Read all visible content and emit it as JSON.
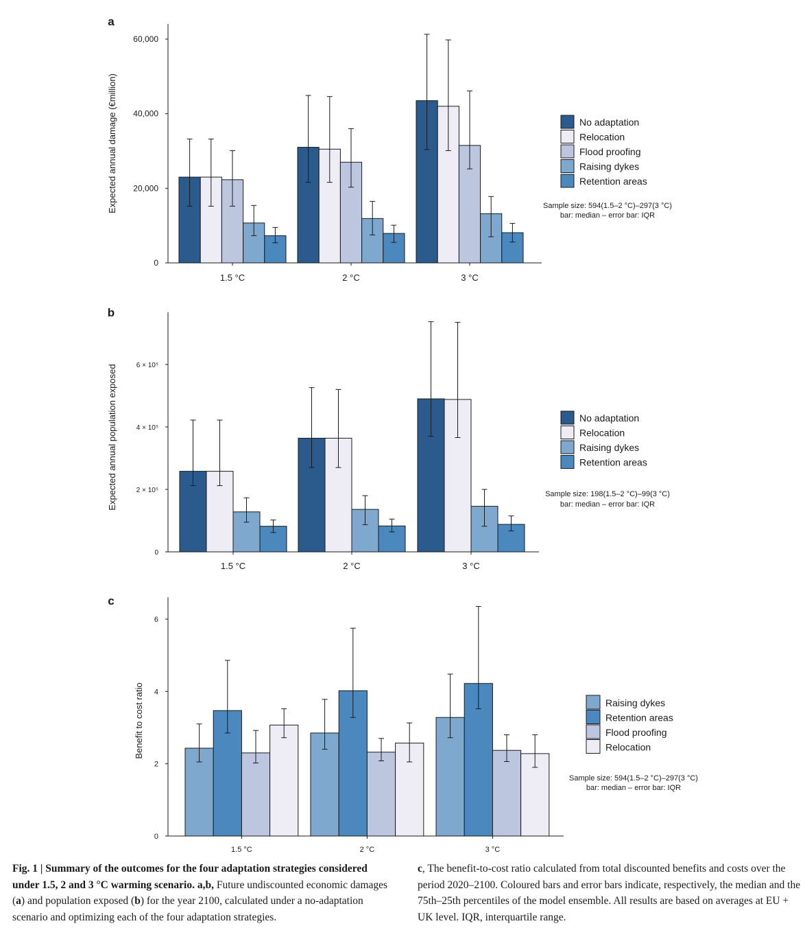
{
  "colors": {
    "No adaptation": "#2b5b8c",
    "Relocation": "#eeedf5",
    "Flood proofing": "#bcc6df",
    "Raising dykes": "#7fa8cf",
    "Retention areas": "#4a88bd"
  },
  "chart_data": [
    {
      "type": "bar",
      "panel_letter": "a",
      "ylabel": "Expected annual damage (€million)",
      "categories": [
        "1.5 °C",
        "2 °C",
        "3 °C"
      ],
      "ylim": [
        0,
        64000
      ],
      "yticks": [
        0,
        20000,
        40000,
        60000
      ],
      "ytick_labels": [
        "0",
        "20,000",
        "40,000",
        "60,000"
      ],
      "series": [
        {
          "name": "No adaptation",
          "values": [
            23000,
            31000,
            43500
          ],
          "err_low": [
            15200,
            21600,
            30400
          ],
          "err_high": [
            33200,
            44900,
            61300
          ]
        },
        {
          "name": "Relocation",
          "values": [
            23000,
            30500,
            42000
          ],
          "err_low": [
            15200,
            21600,
            30100
          ],
          "err_high": [
            33200,
            44600,
            59800
          ]
        },
        {
          "name": "Flood proofing",
          "values": [
            22300,
            27000,
            31500
          ],
          "err_low": [
            15200,
            20300,
            25200
          ],
          "err_high": [
            30100,
            36000,
            46100
          ]
        },
        {
          "name": "Raising dykes",
          "values": [
            10700,
            11900,
            13200
          ],
          "err_low": [
            7300,
            7500,
            7000
          ],
          "err_high": [
            15400,
            16500,
            17800
          ]
        },
        {
          "name": "Retention areas",
          "values": [
            7300,
            7900,
            8100
          ],
          "err_low": [
            5400,
            5500,
            5600
          ],
          "err_high": [
            9500,
            10100,
            10600
          ]
        }
      ],
      "legend": [
        "No adaptation",
        "Relocation",
        "Flood proofing",
        "Raising dykes",
        "Retention areas"
      ],
      "note_line1": "Sample size: 594(1.5–2 °C)–297(3 °C)",
      "note_line2": "bar: median – error bar: IQR"
    },
    {
      "type": "bar",
      "panel_letter": "b",
      "ylabel": "Expected annual population exposed",
      "categories": [
        "1.5 °C",
        "2 °C",
        "3 °C"
      ],
      "ylim": [
        0,
        770000
      ],
      "yticks": [
        0,
        200000,
        400000,
        600000
      ],
      "ytick_labels": [
        "0",
        "2 × 10⁵",
        "4 × 10⁵",
        "6 × 10⁵"
      ],
      "series": [
        {
          "name": "No adaptation",
          "values": [
            258000,
            364000,
            490000
          ],
          "err_low": [
            212000,
            270000,
            370000
          ],
          "err_high": [
            422000,
            526000,
            737000
          ]
        },
        {
          "name": "Relocation",
          "values": [
            258000,
            364000,
            488000
          ],
          "err_low": [
            212000,
            270000,
            366000
          ],
          "err_high": [
            422000,
            520000,
            735000
          ]
        },
        {
          "name": "Raising dykes",
          "values": [
            128000,
            136000,
            146000
          ],
          "err_low": [
            95000,
            87000,
            82000
          ],
          "err_high": [
            173000,
            180000,
            200000
          ]
        },
        {
          "name": "Retention areas",
          "values": [
            82000,
            83000,
            88000
          ],
          "err_low": [
            62000,
            64000,
            67000
          ],
          "err_high": [
            102000,
            105000,
            115000
          ]
        }
      ],
      "legend": [
        "No adaptation",
        "Relocation",
        "Raising dykes",
        "Retention areas"
      ],
      "note_line1": "Sample size: 198(1.5–2 °C)–99(3 °C)",
      "note_line2": "bar: median – error bar: IQR"
    },
    {
      "type": "bar",
      "panel_letter": "c",
      "ylabel": "Benefit to cost ratio",
      "categories": [
        "1.5 °C",
        "2 °C",
        "3 °C"
      ],
      "ylim": [
        0,
        6.6
      ],
      "yticks": [
        0,
        2,
        4,
        6
      ],
      "ytick_labels": [
        "0",
        "2",
        "4",
        "6"
      ],
      "series": [
        {
          "name": "Raising dykes",
          "values": [
            2.43,
            2.85,
            3.28
          ],
          "err_low": [
            2.05,
            2.4,
            2.72
          ],
          "err_high": [
            3.1,
            3.78,
            4.48
          ]
        },
        {
          "name": "Retention areas",
          "values": [
            3.47,
            4.02,
            4.22
          ],
          "err_low": [
            2.85,
            3.28,
            3.52
          ],
          "err_high": [
            4.86,
            5.75,
            6.35
          ]
        },
        {
          "name": "Flood proofing",
          "values": [
            2.3,
            2.32,
            2.37
          ],
          "err_low": [
            2.02,
            2.08,
            2.06
          ],
          "err_high": [
            2.92,
            2.7,
            2.8
          ]
        },
        {
          "name": "Relocation",
          "values": [
            3.07,
            2.57,
            2.28
          ],
          "err_low": [
            2.72,
            2.05,
            1.9
          ],
          "err_high": [
            3.52,
            3.13,
            2.8
          ]
        }
      ],
      "legend": [
        "Raising dykes",
        "Retention areas",
        "Flood proofing",
        "Relocation"
      ],
      "note_line1": "Sample size: 594(1.5–2 °C)–297(3 °C)",
      "note_line2": "bar: median – error bar: IQR"
    }
  ],
  "caption": {
    "fig_label": "Fig. 1",
    "separator": " | ",
    "title": "Summary of the outcomes for the four adaptation strategies considered under 1.5, 2 and 3  °C warming scenario. a,b,",
    "text1": " Future undiscounted economic damages (",
    "ref_a": "a",
    "text2": ") and population exposed (",
    "ref_b": "b",
    "text3": ") for the year 2100, calculated under a no-adaptation scenario and optimizing each of the four adaptation strategies. ",
    "ref_c": "c",
    "text4": ", The benefit-to-cost ratio calculated from total discounted benefits and costs over the period 2020–2100. Coloured bars and error bars indicate, respectively, the median and the 75th–25th percentiles of the model ensemble. All results are based on averages at EU + UK level. IQR, interquartile range."
  }
}
